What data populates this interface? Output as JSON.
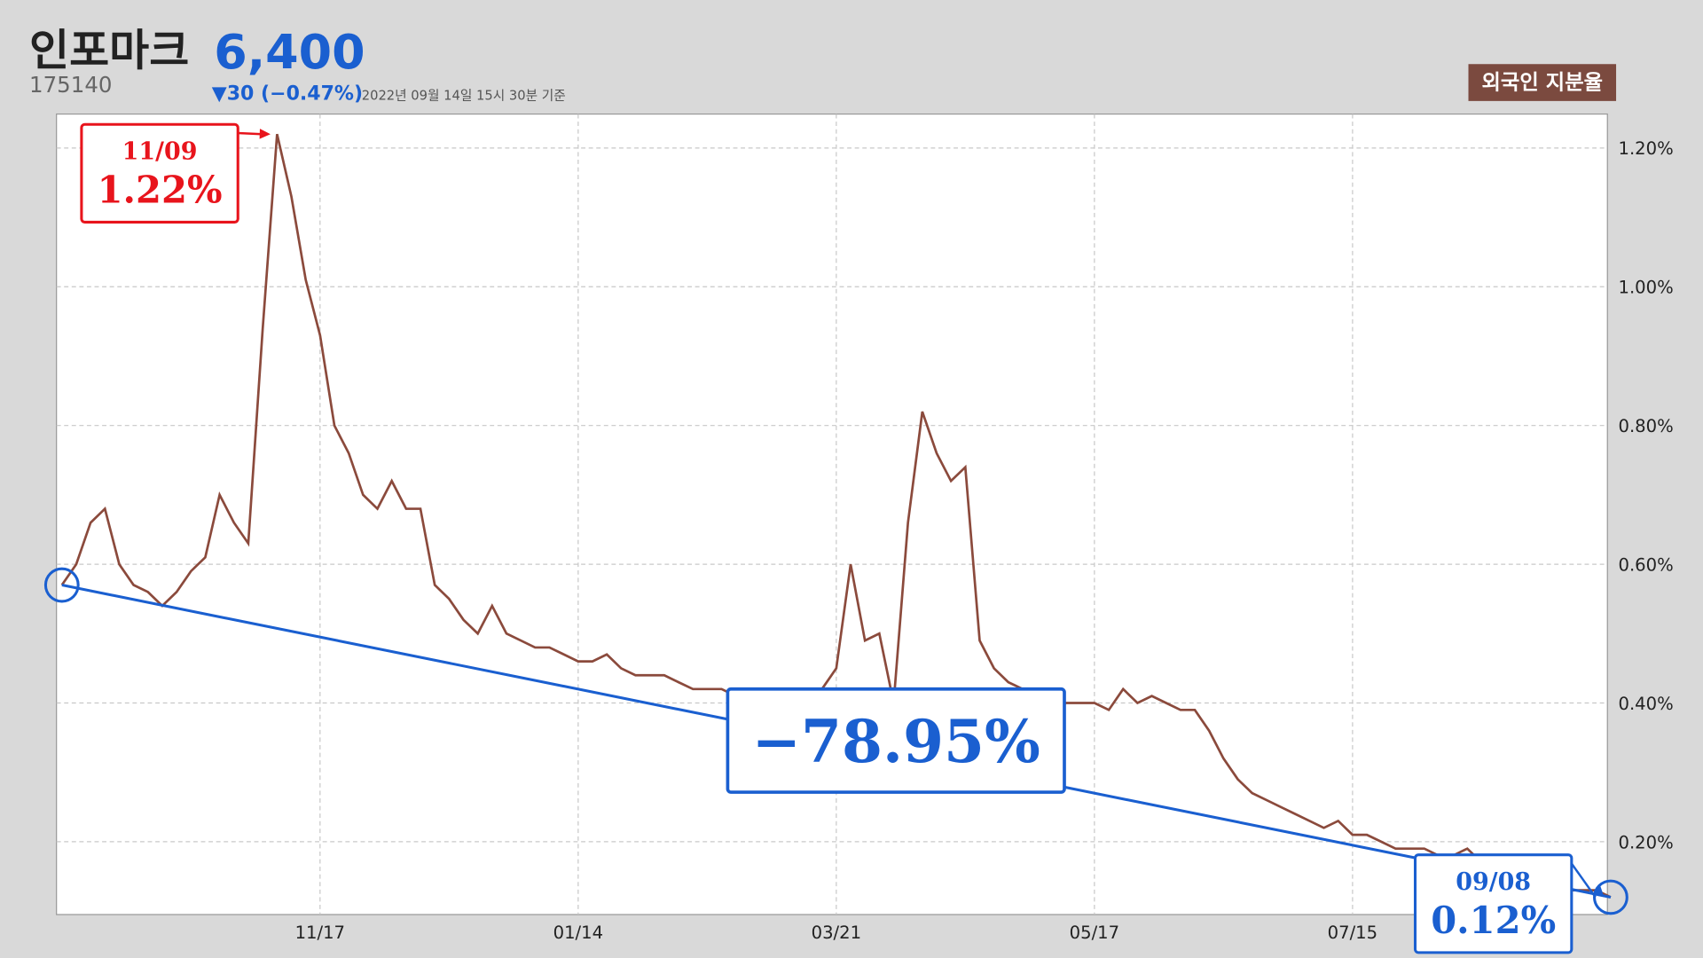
{
  "header": {
    "title": "인포마크",
    "price": "6,400",
    "code": "175140",
    "change": "▼30 (−0.47%)",
    "timestamp": "2022년 09월 14일 15시 30분 기준"
  },
  "chart_data": {
    "type": "line",
    "categories": [
      null,
      null,
      null,
      null,
      null,
      null,
      null,
      null,
      null,
      null,
      null,
      null,
      null,
      null,
      null,
      "11/09",
      null,
      null,
      "11/17",
      null,
      null,
      null,
      null,
      null,
      null,
      null,
      null,
      null,
      null,
      null,
      null,
      null,
      null,
      null,
      null,
      null,
      "01/14",
      null,
      null,
      null,
      null,
      null,
      null,
      null,
      null,
      null,
      null,
      null,
      null,
      null,
      null,
      null,
      null,
      null,
      "03/21",
      null,
      null,
      null,
      null,
      null,
      null,
      null,
      null,
      null,
      null,
      null,
      null,
      null,
      null,
      null,
      null,
      null,
      "05/17",
      null,
      null,
      null,
      null,
      null,
      null,
      null,
      null,
      null,
      null,
      null,
      null,
      null,
      null,
      null,
      null,
      null,
      "07/15",
      null,
      null,
      null,
      null,
      null,
      null,
      null,
      null,
      null,
      null,
      null,
      null,
      null,
      null,
      null,
      null,
      null,
      "09/08"
    ],
    "series": [
      {
        "name": "외국인 지분율",
        "color": "#8b4a3c",
        "values": [
          0.57,
          0.6,
          0.66,
          0.68,
          0.6,
          0.57,
          0.56,
          0.54,
          0.56,
          0.59,
          0.61,
          0.7,
          0.66,
          0.63,
          0.94,
          1.22,
          1.13,
          1.01,
          0.93,
          0.8,
          0.76,
          0.7,
          0.68,
          0.72,
          0.68,
          0.68,
          0.57,
          0.55,
          0.52,
          0.5,
          0.54,
          0.5,
          0.49,
          0.48,
          0.48,
          0.47,
          0.46,
          0.46,
          0.47,
          0.45,
          0.44,
          0.44,
          0.44,
          0.43,
          0.42,
          0.42,
          0.42,
          0.41,
          0.41,
          0.4,
          0.41,
          0.4,
          0.4,
          0.42,
          0.45,
          0.6,
          0.49,
          0.5,
          0.4,
          0.66,
          0.82,
          0.76,
          0.72,
          0.74,
          0.49,
          0.45,
          0.43,
          0.42,
          0.41,
          0.38,
          0.4,
          0.4,
          0.4,
          0.39,
          0.42,
          0.4,
          0.41,
          0.4,
          0.39,
          0.39,
          0.36,
          0.32,
          0.29,
          0.27,
          0.26,
          0.25,
          0.24,
          0.23,
          0.22,
          0.23,
          0.21,
          0.21,
          0.2,
          0.19,
          0.19,
          0.19,
          0.18,
          0.18,
          0.19,
          0.17,
          0.16,
          0.15,
          0.15,
          0.14,
          0.14,
          0.13,
          0.13,
          0.13,
          0.12
        ],
        "value_labels": [
          null,
          null,
          null,
          null,
          null,
          null,
          null,
          null,
          null,
          null,
          null,
          null,
          null,
          null,
          null,
          "1.22%",
          null,
          null,
          null,
          null,
          null,
          null,
          null,
          null,
          null,
          null,
          null,
          null,
          null,
          null,
          null,
          null,
          null,
          null,
          null,
          null,
          null,
          null,
          null,
          null,
          null,
          null,
          null,
          null,
          null,
          null,
          null,
          null,
          null,
          null,
          null,
          null,
          null,
          null,
          null,
          null,
          null,
          null,
          null,
          null,
          null,
          null,
          null,
          null,
          null,
          null,
          null,
          null,
          null,
          null,
          null,
          null,
          null,
          null,
          null,
          null,
          null,
          null,
          null,
          null,
          null,
          null,
          null,
          null,
          null,
          null,
          null,
          null,
          null,
          null,
          null,
          null,
          null,
          null,
          null,
          null,
          null,
          null,
          null,
          null,
          null,
          null,
          null,
          null,
          null,
          null,
          null,
          null,
          "0.12%"
        ]
      }
    ],
    "change_label": "−78.95%",
    "ylim": [
      0.095,
      1.249
    ],
    "yticks": [
      {
        "value": 0.2,
        "label": "0.20%"
      },
      {
        "value": 0.4,
        "label": "0.40%"
      },
      {
        "value": 0.6,
        "label": "0.60%"
      },
      {
        "value": 0.8,
        "label": "0.80%"
      },
      {
        "value": 1.0,
        "label": "1.00%"
      },
      {
        "value": 1.2,
        "label": "1.20%"
      }
    ],
    "grid": true
  }
}
